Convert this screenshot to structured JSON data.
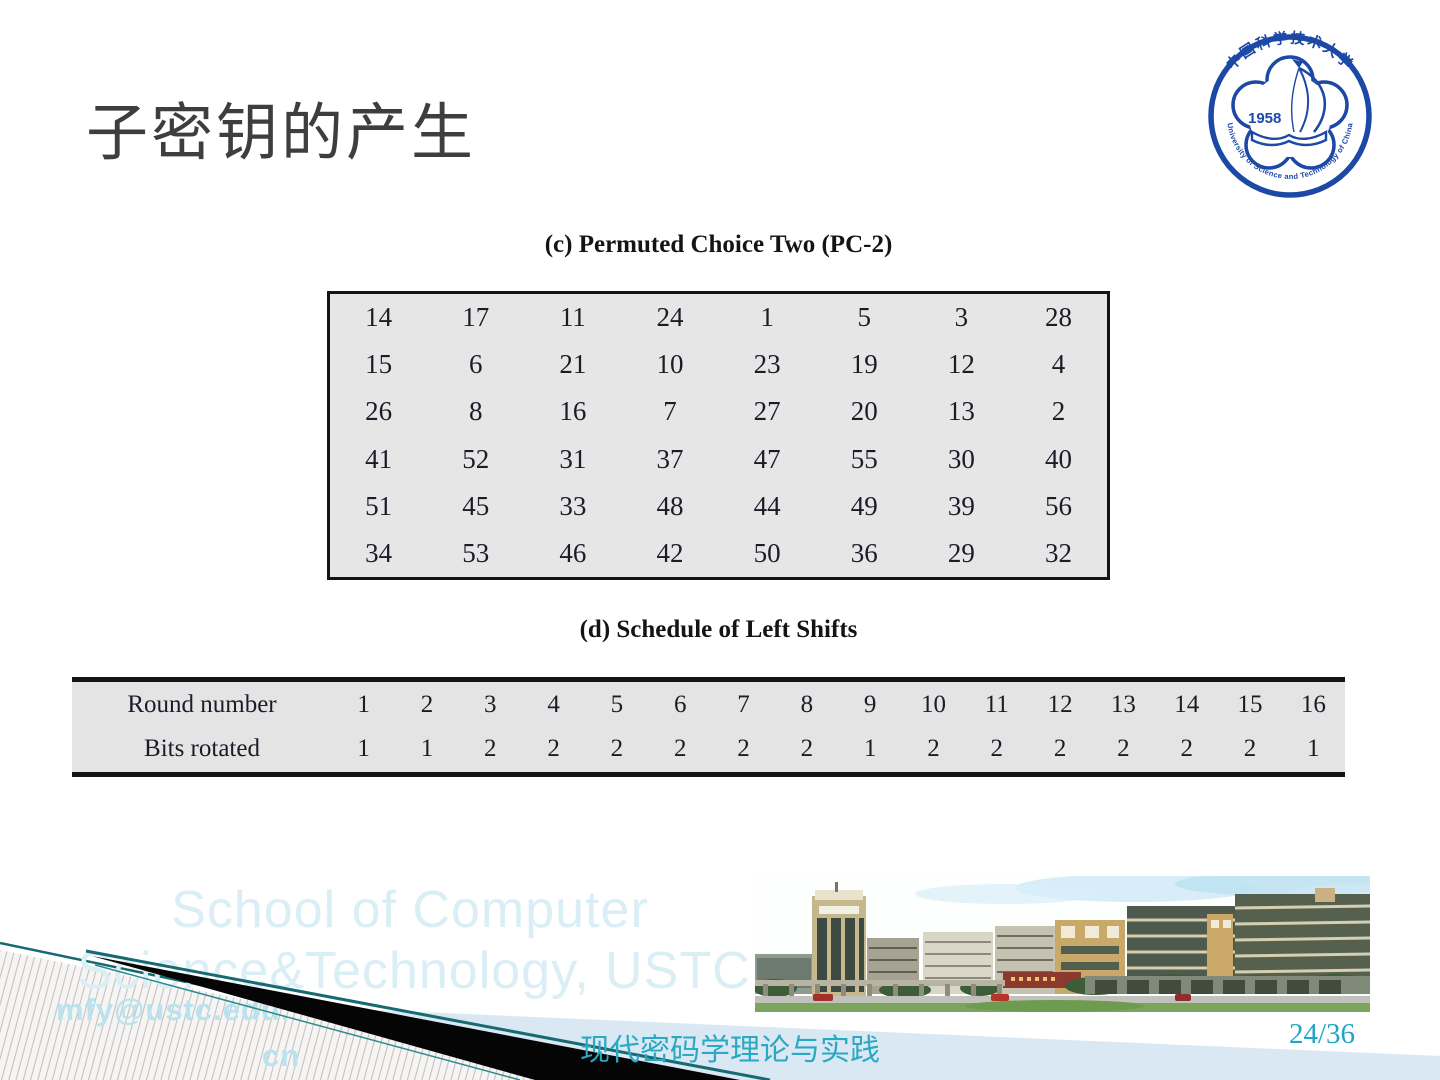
{
  "slide": {
    "title": "子密钥的产生",
    "footer_course": "现代密码学理论与实践",
    "page_number": "24/36",
    "watermark_line1": "School of Computer",
    "watermark_line2": "Science&Technology, USTC",
    "watermark_email_line1": "mfy@ustc.edu.",
    "watermark_email_line2": "cn"
  },
  "logo": {
    "year": "1958",
    "university_cn": "中国科学技术大学",
    "university_en": "University of Science and Technology of China"
  },
  "pc2_table": {
    "caption": "(c) Permuted Choice Two (PC-2)",
    "rows": [
      [
        14,
        17,
        11,
        24,
        1,
        5,
        3,
        28
      ],
      [
        15,
        6,
        21,
        10,
        23,
        19,
        12,
        4
      ],
      [
        26,
        8,
        16,
        7,
        27,
        20,
        13,
        2
      ],
      [
        41,
        52,
        31,
        37,
        47,
        55,
        30,
        40
      ],
      [
        51,
        45,
        33,
        48,
        44,
        49,
        39,
        56
      ],
      [
        34,
        53,
        46,
        42,
        50,
        36,
        29,
        32
      ]
    ]
  },
  "shift_table": {
    "caption": "(d) Schedule of Left Shifts",
    "rows": [
      {
        "label": "Round number",
        "values": [
          1,
          2,
          3,
          4,
          5,
          6,
          7,
          8,
          9,
          10,
          11,
          12,
          13,
          14,
          15,
          16
        ]
      },
      {
        "label": "Bits rotated",
        "values": [
          1,
          1,
          2,
          2,
          2,
          2,
          2,
          2,
          1,
          2,
          2,
          2,
          2,
          2,
          2,
          1
        ]
      }
    ]
  },
  "colors": {
    "accent_teal": "#2aa9c2",
    "teal_line": "#176a72",
    "table_bg": "#e5e5e5",
    "logo_blue": "#1c48a6",
    "watermark_cyan": "#daeef6",
    "band_blue": "#d9e8f2",
    "title_gray": "#3e3e3e"
  }
}
